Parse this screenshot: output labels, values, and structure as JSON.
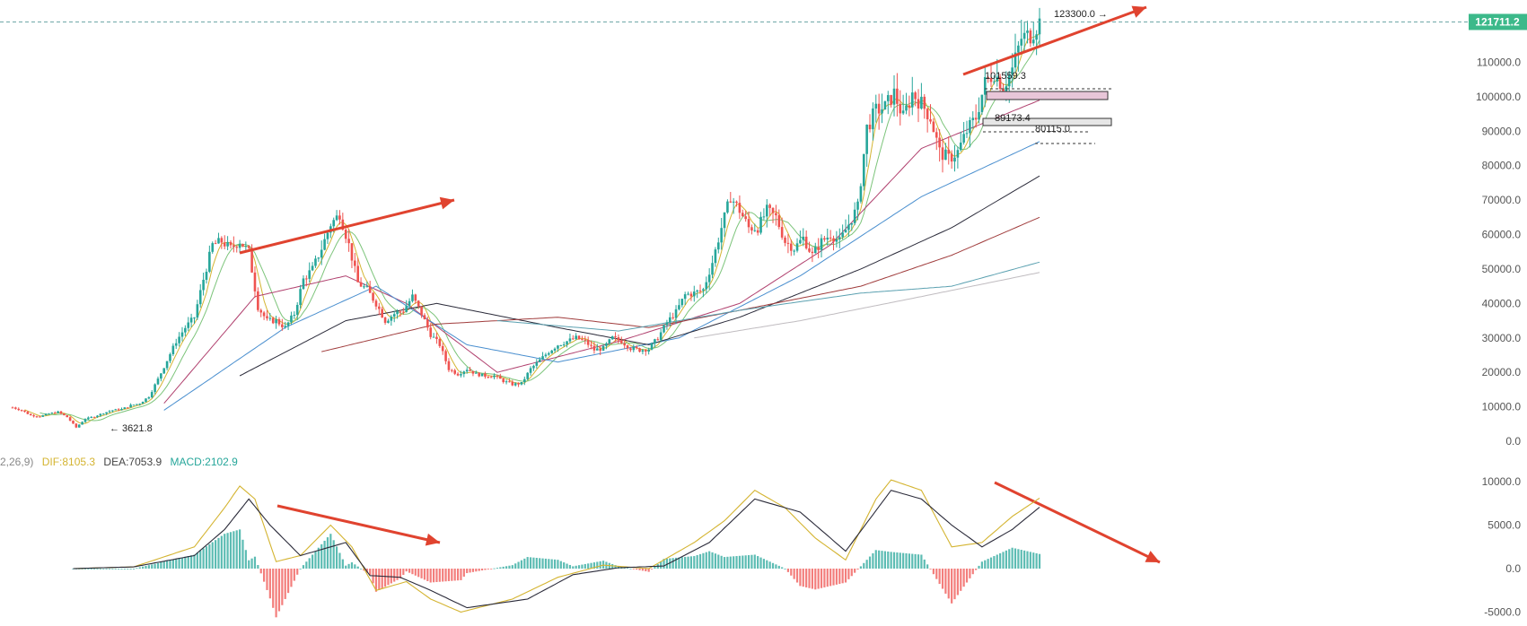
{
  "colors": {
    "up": "#26a69a",
    "down": "#ef5350",
    "arrow": "#e0432f",
    "price_tag_bg": "#3cb98a",
    "dif": "#d4b431",
    "dea": "#2b2b3a",
    "ma5": "#d4b431",
    "ma10": "#7cc47a",
    "ma20": "#b0406e",
    "ma30": "#4a8fcf",
    "ma60": "#2b2b3a",
    "ma120": "#a03c3c",
    "ma200": "#5aa0b0",
    "ma250": "#c0bcc0",
    "zone_fill": "#e8c6d8",
    "axis_text": "#555555",
    "grid_dash": "#6fa8a8"
  },
  "price_axis": {
    "ticks": [
      "123300.0",
      "110000.0",
      "100000.0",
      "90000.0",
      "80000.0",
      "70000.0",
      "60000.0",
      "50000.0",
      "40000.0",
      "30000.0",
      "20000.0",
      "10000.0",
      "0.0"
    ]
  },
  "current_price": "121711.2",
  "annotations": {
    "high_label": "123300.0 →",
    "low_label": "← 3621.8",
    "level_1": "101559.3",
    "level_2": "89173.4",
    "level_3": "80115.0"
  },
  "macd": {
    "prefix": "2,26,9)",
    "dif": "DIF:8105.3",
    "dea": "DEA:7053.9",
    "macd": "MACD:2102.9",
    "axis_ticks": [
      "10000.0",
      "5000.0",
      "0.0",
      "-5000.0"
    ]
  },
  "chart_data": {
    "type": "candlestick",
    "title": "",
    "ylim": [
      0,
      126000
    ],
    "price_close_path": [
      [
        0,
        9800
      ],
      [
        3,
        9000
      ],
      [
        6,
        7500
      ],
      [
        9,
        7200
      ],
      [
        12,
        8000
      ],
      [
        15,
        8500
      ],
      [
        18,
        7000
      ],
      [
        21,
        4000
      ],
      [
        24,
        6500
      ],
      [
        27,
        7200
      ],
      [
        30,
        8200
      ],
      [
        33,
        9000
      ],
      [
        36,
        9300
      ],
      [
        39,
        10400
      ],
      [
        42,
        11000
      ],
      [
        45,
        13000
      ],
      [
        48,
        18000
      ],
      [
        51,
        23500
      ],
      [
        54,
        29000
      ],
      [
        57,
        33000
      ],
      [
        60,
        36000
      ],
      [
        63,
        47000
      ],
      [
        66,
        57000
      ],
      [
        69,
        58000
      ],
      [
        72,
        56000
      ],
      [
        75,
        58000
      ],
      [
        78,
        55000
      ],
      [
        81,
        39000
      ],
      [
        84,
        35000
      ],
      [
        87,
        35000
      ],
      [
        90,
        33000
      ],
      [
        93,
        37000
      ],
      [
        96,
        47000
      ],
      [
        99,
        50000
      ],
      [
        102,
        56000
      ],
      [
        105,
        63000
      ],
      [
        108,
        66000
      ],
      [
        111,
        57000
      ],
      [
        114,
        46000
      ],
      [
        117,
        44000
      ],
      [
        120,
        40000
      ],
      [
        123,
        35000
      ],
      [
        126,
        37000
      ],
      [
        129,
        38000
      ],
      [
        132,
        42000
      ],
      [
        135,
        37000
      ],
      [
        138,
        31000
      ],
      [
        141,
        28000
      ],
      [
        144,
        21000
      ],
      [
        147,
        19500
      ],
      [
        150,
        21000
      ],
      [
        153,
        19500
      ],
      [
        156,
        19000
      ],
      [
        159,
        19000
      ],
      [
        162,
        17500
      ],
      [
        165,
        16500
      ],
      [
        168,
        16800
      ],
      [
        171,
        21000
      ],
      [
        174,
        23500
      ],
      [
        177,
        26000
      ],
      [
        180,
        28000
      ],
      [
        183,
        29000
      ],
      [
        186,
        30000
      ],
      [
        189,
        29000
      ],
      [
        192,
        26500
      ],
      [
        195,
        27000
      ],
      [
        198,
        30000
      ],
      [
        201,
        29000
      ],
      [
        204,
        27000
      ],
      [
        207,
        26500
      ],
      [
        210,
        26800
      ],
      [
        213,
        30000
      ],
      [
        216,
        34500
      ],
      [
        219,
        37500
      ],
      [
        222,
        42500
      ],
      [
        225,
        43000
      ],
      [
        228,
        44000
      ],
      [
        231,
        52000
      ],
      [
        234,
        62000
      ],
      [
        237,
        71000
      ],
      [
        240,
        67000
      ],
      [
        243,
        62000
      ],
      [
        246,
        62000
      ],
      [
        249,
        67000
      ],
      [
        252,
        65000
      ],
      [
        255,
        58000
      ],
      [
        258,
        56000
      ],
      [
        261,
        59000
      ],
      [
        264,
        54000
      ],
      [
        267,
        58000
      ],
      [
        270,
        60000
      ],
      [
        273,
        58000
      ],
      [
        276,
        63000
      ],
      [
        279,
        68000
      ],
      [
        282,
        91000
      ],
      [
        285,
        96000
      ],
      [
        288,
        97000
      ],
      [
        291,
        101000
      ],
      [
        294,
        94000
      ],
      [
        297,
        101000
      ],
      [
        300,
        98000
      ],
      [
        303,
        94000
      ],
      [
        306,
        84000
      ],
      [
        309,
        82000
      ],
      [
        312,
        84000
      ],
      [
        315,
        90000
      ],
      [
        318,
        94000
      ],
      [
        321,
        104000
      ],
      [
        324,
        107000
      ],
      [
        327,
        103000
      ],
      [
        330,
        108000
      ],
      [
        333,
        117000
      ],
      [
        336,
        118000
      ],
      [
        339,
        121711
      ]
    ],
    "moving_averages": [
      {
        "name": "MA20",
        "start": 50,
        "values": [
          [
            50,
            11000
          ],
          [
            80,
            42000
          ],
          [
            110,
            48000
          ],
          [
            130,
            40000
          ],
          [
            160,
            20000
          ],
          [
            200,
            29000
          ],
          [
            240,
            40000
          ],
          [
            270,
            57000
          ],
          [
            300,
            85000
          ],
          [
            339,
            99000
          ]
        ]
      },
      {
        "name": "MA30",
        "start": 50,
        "values": [
          [
            50,
            9000
          ],
          [
            90,
            33000
          ],
          [
            120,
            45000
          ],
          [
            150,
            28000
          ],
          [
            180,
            23000
          ],
          [
            220,
            30000
          ],
          [
            260,
            48000
          ],
          [
            300,
            71000
          ],
          [
            339,
            87000
          ]
        ]
      },
      {
        "name": "MA60",
        "start": 75,
        "values": [
          [
            75,
            19000
          ],
          [
            110,
            35000
          ],
          [
            140,
            40000
          ],
          [
            180,
            33000
          ],
          [
            210,
            28000
          ],
          [
            240,
            36000
          ],
          [
            280,
            50000
          ],
          [
            310,
            62000
          ],
          [
            339,
            77000
          ]
        ]
      },
      {
        "name": "MA120",
        "start": 102,
        "values": [
          [
            102,
            26000
          ],
          [
            140,
            34000
          ],
          [
            180,
            36000
          ],
          [
            210,
            33000
          ],
          [
            240,
            38000
          ],
          [
            280,
            45000
          ],
          [
            310,
            54000
          ],
          [
            339,
            65000
          ]
        ]
      },
      {
        "name": "MA200",
        "start": 160,
        "values": [
          [
            160,
            35000
          ],
          [
            200,
            32000
          ],
          [
            240,
            38000
          ],
          [
            280,
            43000
          ],
          [
            310,
            45000
          ],
          [
            339,
            52000
          ]
        ]
      },
      {
        "name": "MA250",
        "start": 225,
        "values": [
          [
            225,
            30000
          ],
          [
            260,
            35000
          ],
          [
            300,
            42000
          ],
          [
            339,
            49000
          ]
        ]
      }
    ],
    "macd_series": {
      "dif": [
        [
          20,
          0
        ],
        [
          40,
          200
        ],
        [
          60,
          2500
        ],
        [
          70,
          7000
        ],
        [
          75,
          9500
        ],
        [
          80,
          8000
        ],
        [
          87,
          800
        ],
        [
          95,
          1500
        ],
        [
          105,
          5000
        ],
        [
          112,
          2500
        ],
        [
          120,
          -2500
        ],
        [
          130,
          -1500
        ],
        [
          138,
          -3500
        ],
        [
          148,
          -5000
        ],
        [
          165,
          -3500
        ],
        [
          180,
          -1000
        ],
        [
          195,
          400
        ],
        [
          210,
          0
        ],
        [
          225,
          3000
        ],
        [
          235,
          5500
        ],
        [
          245,
          9000
        ],
        [
          255,
          7000
        ],
        [
          265,
          3500
        ],
        [
          275,
          1000
        ],
        [
          285,
          8000
        ],
        [
          290,
          10200
        ],
        [
          300,
          9000
        ],
        [
          310,
          2500
        ],
        [
          320,
          3000
        ],
        [
          330,
          6000
        ],
        [
          339,
          8105
        ]
      ],
      "dea": [
        [
          20,
          0
        ],
        [
          40,
          200
        ],
        [
          60,
          1500
        ],
        [
          70,
          4500
        ],
        [
          78,
          8000
        ],
        [
          85,
          5000
        ],
        [
          95,
          1500
        ],
        [
          110,
          3000
        ],
        [
          118,
          -800
        ],
        [
          128,
          -1000
        ],
        [
          138,
          -2500
        ],
        [
          150,
          -4500
        ],
        [
          170,
          -3500
        ],
        [
          185,
          -700
        ],
        [
          200,
          100
        ],
        [
          215,
          300
        ],
        [
          230,
          3000
        ],
        [
          245,
          8000
        ],
        [
          260,
          6500
        ],
        [
          275,
          2000
        ],
        [
          290,
          9000
        ],
        [
          300,
          8000
        ],
        [
          310,
          5000
        ],
        [
          320,
          2500
        ],
        [
          330,
          4500
        ],
        [
          339,
          7054
        ]
      ]
    }
  }
}
